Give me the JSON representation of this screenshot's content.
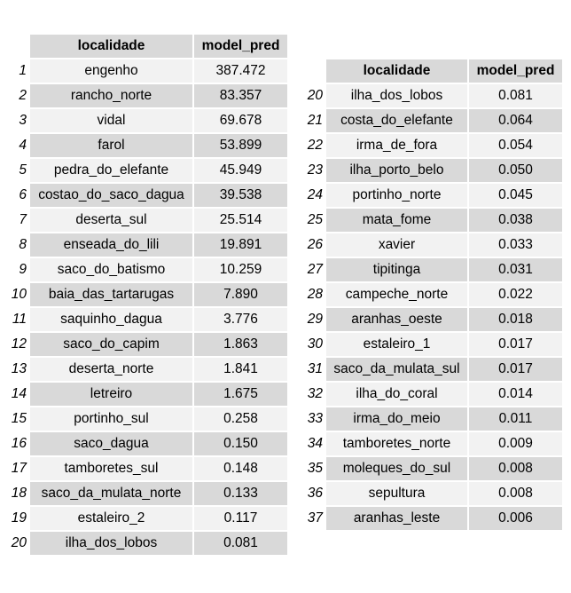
{
  "table_left": {
    "headers": [
      "localidade",
      "model_pred"
    ],
    "rows": [
      {
        "idx": "1",
        "localidade": "engenho",
        "model_pred": "387.472"
      },
      {
        "idx": "2",
        "localidade": "rancho_norte",
        "model_pred": "83.357"
      },
      {
        "idx": "3",
        "localidade": "vidal",
        "model_pred": "69.678"
      },
      {
        "idx": "4",
        "localidade": "farol",
        "model_pred": "53.899"
      },
      {
        "idx": "5",
        "localidade": "pedra_do_elefante",
        "model_pred": "45.949"
      },
      {
        "idx": "6",
        "localidade": "costao_do_saco_dagua",
        "model_pred": "39.538"
      },
      {
        "idx": "7",
        "localidade": "deserta_sul",
        "model_pred": "25.514"
      },
      {
        "idx": "8",
        "localidade": "enseada_do_lili",
        "model_pred": "19.891"
      },
      {
        "idx": "9",
        "localidade": "saco_do_batismo",
        "model_pred": "10.259"
      },
      {
        "idx": "10",
        "localidade": "baia_das_tartarugas",
        "model_pred": "7.890"
      },
      {
        "idx": "11",
        "localidade": "saquinho_dagua",
        "model_pred": "3.776"
      },
      {
        "idx": "12",
        "localidade": "saco_do_capim",
        "model_pred": "1.863"
      },
      {
        "idx": "13",
        "localidade": "deserta_norte",
        "model_pred": "1.841"
      },
      {
        "idx": "14",
        "localidade": "letreiro",
        "model_pred": "1.675"
      },
      {
        "idx": "15",
        "localidade": "portinho_sul",
        "model_pred": "0.258"
      },
      {
        "idx": "16",
        "localidade": "saco_dagua",
        "model_pred": "0.150"
      },
      {
        "idx": "17",
        "localidade": "tamboretes_sul",
        "model_pred": "0.148"
      },
      {
        "idx": "18",
        "localidade": "saco_da_mulata_norte",
        "model_pred": "0.133"
      },
      {
        "idx": "19",
        "localidade": "estaleiro_2",
        "model_pred": "0.117"
      },
      {
        "idx": "20",
        "localidade": "ilha_dos_lobos",
        "model_pred": "0.081"
      }
    ]
  },
  "table_right": {
    "headers": [
      "localidade",
      "model_pred"
    ],
    "rows": [
      {
        "idx": "20",
        "localidade": "ilha_dos_lobos",
        "model_pred": "0.081"
      },
      {
        "idx": "21",
        "localidade": "costa_do_elefante",
        "model_pred": "0.064"
      },
      {
        "idx": "22",
        "localidade": "irma_de_fora",
        "model_pred": "0.054"
      },
      {
        "idx": "23",
        "localidade": "ilha_porto_belo",
        "model_pred": "0.050"
      },
      {
        "idx": "24",
        "localidade": "portinho_norte",
        "model_pred": "0.045"
      },
      {
        "idx": "25",
        "localidade": "mata_fome",
        "model_pred": "0.038"
      },
      {
        "idx": "26",
        "localidade": "xavier",
        "model_pred": "0.033"
      },
      {
        "idx": "27",
        "localidade": "tipitinga",
        "model_pred": "0.031"
      },
      {
        "idx": "28",
        "localidade": "campeche_norte",
        "model_pred": "0.022"
      },
      {
        "idx": "29",
        "localidade": "aranhas_oeste",
        "model_pred": "0.018"
      },
      {
        "idx": "30",
        "localidade": "estaleiro_1",
        "model_pred": "0.017"
      },
      {
        "idx": "31",
        "localidade": "saco_da_mulata_sul",
        "model_pred": "0.017"
      },
      {
        "idx": "32",
        "localidade": "ilha_do_coral",
        "model_pred": "0.014"
      },
      {
        "idx": "33",
        "localidade": "irma_do_meio",
        "model_pred": "0.011"
      },
      {
        "idx": "34",
        "localidade": "tamboretes_norte",
        "model_pred": "0.009"
      },
      {
        "idx": "35",
        "localidade": "moleques_do_sul",
        "model_pred": "0.008"
      },
      {
        "idx": "36",
        "localidade": "sepultura",
        "model_pred": "0.008"
      },
      {
        "idx": "37",
        "localidade": "aranhas_leste",
        "model_pred": "0.006"
      }
    ]
  }
}
